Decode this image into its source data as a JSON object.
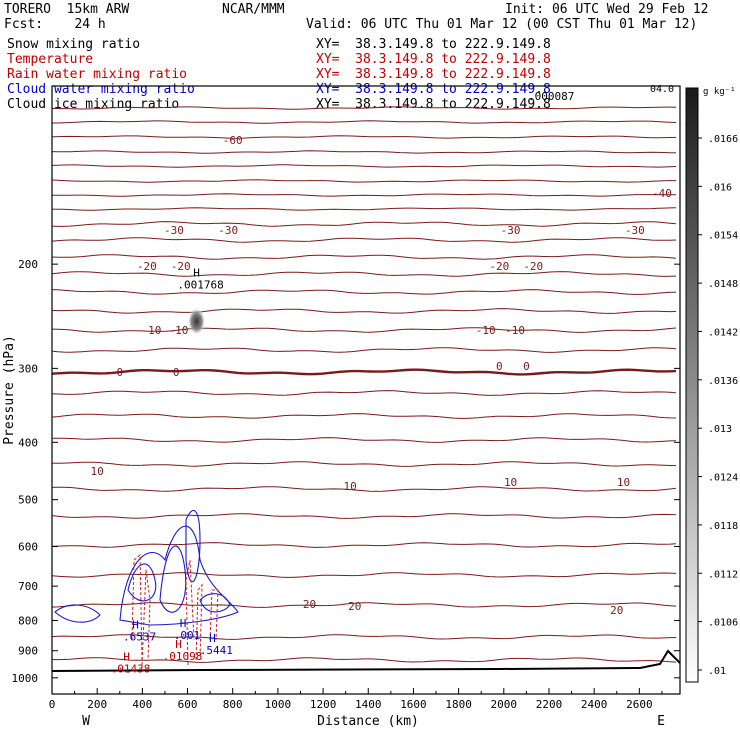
{
  "header": {
    "model": "TORERO  15km ARW",
    "org": "NCAR/MMM",
    "init": "Init: 06 UTC Wed 29 Feb 12",
    "fcst": "Fcst:    24 h",
    "valid": "Valid: 06 UTC Thu 01 Mar 12 (00 CST Thu 01 Mar 12)"
  },
  "fields": [
    {
      "label": "Snow mixing ratio",
      "color": "#000000",
      "xy": "XY=  38.3.149.8 to 222.9.149.8",
      "xy_color": "#000000"
    },
    {
      "label": "Temperature",
      "color": "#c00000",
      "xy": "XY=  38.3.149.8 to 222.9.149.8",
      "xy_color": "#c00000"
    },
    {
      "label": "Rain water mixing ratio",
      "color": "#c00000",
      "xy": "XY=  38.3.149.8 to 222.9.149.8",
      "xy_color": "#c00000"
    },
    {
      "label": "Cloud water mixing ratio",
      "color": "#0000cc",
      "xy": "XY=  38.3.149.8 to 222.9.149.8",
      "xy_color": "#0000cc"
    },
    {
      "label": "Cloud ice mixing ratio",
      "color": "#000000",
      "xy": "XY=  38.3.149.8 to 222.9.149.8",
      "xy_color": "#000000"
    }
  ],
  "chart_data": {
    "type": "cross-section",
    "xlabel": "Distance (km)",
    "ylabel": "Pressure (hPa)",
    "xlim": [
      0,
      2780
    ],
    "ylim": [
      1065,
      100
    ],
    "yscale": "log",
    "xticks": [
      0,
      200,
      400,
      600,
      800,
      1000,
      1200,
      1400,
      1600,
      1800,
      2000,
      2200,
      2400,
      2600
    ],
    "yticks": [
      200,
      300,
      400,
      500,
      600,
      700,
      800,
      900,
      1000
    ],
    "x_end_labels": {
      "left": "W",
      "right": "E"
    },
    "colorbar": {
      "unit": "g kg⁻¹",
      "ticks": [
        ".0166",
        ".016",
        ".0154",
        ".0148",
        ".0142",
        ".0136",
        ".013",
        ".0124",
        ".0118",
        ".0112",
        ".0106",
        ".01"
      ]
    },
    "temperature_isotherms": [
      {
        "value": -60,
        "label": "-60",
        "labels_km": [
          [
            800,
            140
          ]
        ]
      },
      {
        "value": -40,
        "label": "-40",
        "labels_km": [
          [
            2700,
            193
          ]
        ]
      },
      {
        "value": -30,
        "label": "-30",
        "labels_km": [
          [
            540,
            230
          ],
          [
            780,
            230
          ],
          [
            2030,
            230
          ],
          [
            2580,
            230
          ]
        ]
      },
      {
        "value": -20,
        "label": "-20",
        "labels_km": [
          [
            420,
            266
          ],
          [
            570,
            266
          ],
          [
            1980,
            266
          ],
          [
            2130,
            266
          ]
        ]
      },
      {
        "value": -10,
        "label": "-10",
        "labels_km": [
          [
            440,
            330
          ],
          [
            560,
            330
          ],
          [
            1920,
            330
          ],
          [
            2050,
            330
          ]
        ]
      },
      {
        "value": 0,
        "label": "0",
        "labels_km": [
          [
            300,
            372
          ],
          [
            550,
            372
          ],
          [
            1980,
            366
          ],
          [
            2100,
            366
          ]
        ]
      },
      {
        "value": 10,
        "label": "10",
        "labels_km": [
          [
            200,
            471
          ],
          [
            1320,
            486
          ],
          [
            2030,
            482
          ],
          [
            2530,
            482
          ]
        ]
      },
      {
        "value": 20,
        "label": "20",
        "labels_km": [
          [
            1140,
            604
          ],
          [
            1340,
            606
          ],
          [
            2500,
            610
          ]
        ]
      }
    ],
    "extrema_labels": [
      {
        "text": "H",
        "sub": ".001768",
        "km": 640,
        "hpa": 210,
        "color": "#000000"
      },
      {
        "text": "H",
        "sub": ".6537",
        "km": 370,
        "hpa": 825,
        "color": "#0000cc"
      },
      {
        "text": "H",
        "sub": ".001",
        "km": 580,
        "hpa": 820,
        "color": "#0000cc"
      },
      {
        "text": "H",
        "sub": ".5441",
        "km": 710,
        "hpa": 870,
        "color": "#0000cc"
      },
      {
        "text": "H",
        "sub": ".01098",
        "km": 560,
        "hpa": 890,
        "color": "#c00000"
      },
      {
        "text": "H",
        "sub": ".01438",
        "km": 330,
        "hpa": 935,
        "color": "#c00000"
      }
    ],
    "top_label": ".000087",
    "top_label_right": "04.0"
  }
}
